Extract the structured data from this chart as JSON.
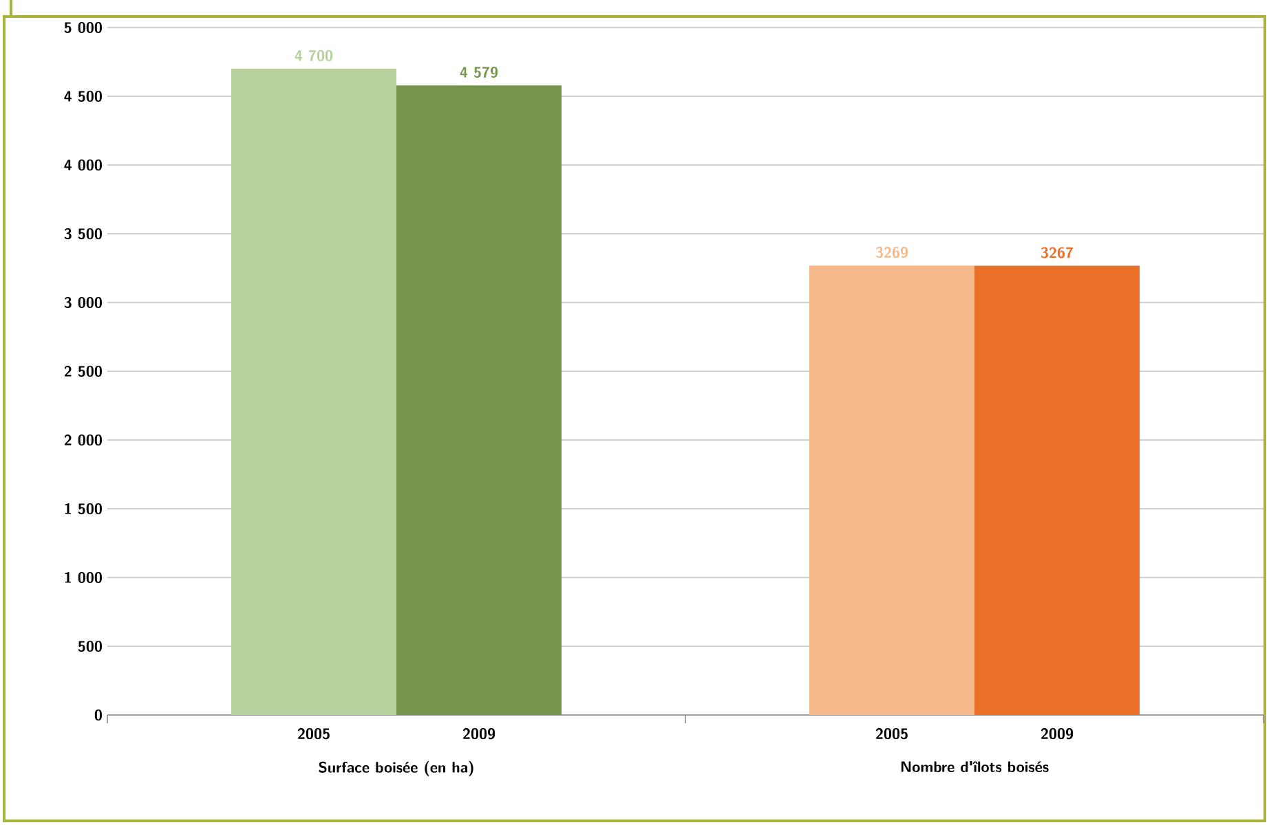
{
  "chart_data": {
    "type": "bar",
    "categories": [
      "Surface boisée (en ha)",
      "Nombre d'îlots boisés"
    ],
    "series": [
      {
        "name": "2005",
        "colors": [
          "#b6d19b",
          "#f6b98b"
        ],
        "values": [
          4700,
          3269
        ],
        "value_labels": [
          "4 700",
          "3269"
        ]
      },
      {
        "name": "2009",
        "colors": [
          "#76974b",
          "#ea7027"
        ],
        "values": [
          4579,
          3267
        ],
        "value_labels": [
          "4 579",
          "3267"
        ]
      }
    ],
    "ylim": [
      0,
      5000
    ],
    "yticks": [
      {
        "value": 0,
        "label": "0"
      },
      {
        "value": 500,
        "label": "500"
      },
      {
        "value": 1000,
        "label": "1 000"
      },
      {
        "value": 1500,
        "label": "1 500"
      },
      {
        "value": 2000,
        "label": "2 000"
      },
      {
        "value": 2500,
        "label": "2 500"
      },
      {
        "value": 3000,
        "label": "3 000"
      },
      {
        "value": 3500,
        "label": "3 500"
      },
      {
        "value": 4000,
        "label": "4 000"
      },
      {
        "value": 4500,
        "label": "4 500"
      },
      {
        "value": 5000,
        "label": "5 000"
      }
    ],
    "grid": "y"
  }
}
